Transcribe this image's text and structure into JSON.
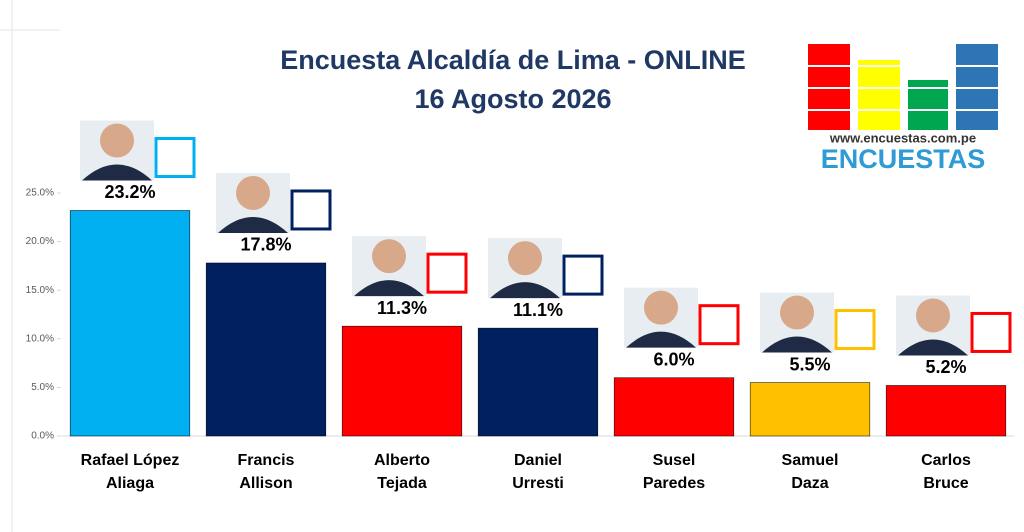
{
  "chart_data": {
    "type": "bar",
    "title": "Encuesta Alcaldía de Lima - ONLINE",
    "subtitle": "16 Agosto 2026",
    "categories": [
      [
        "Rafael López",
        "Aliaga"
      ],
      [
        "Francis",
        "Allison"
      ],
      [
        "Alberto",
        "Tejada"
      ],
      [
        "Daniel",
        "Urresti"
      ],
      [
        "Susel",
        "Paredes"
      ],
      [
        "Samuel",
        "Daza"
      ],
      [
        "Carlos",
        "Bruce"
      ]
    ],
    "values": [
      23.2,
      17.8,
      11.3,
      11.1,
      6.0,
      5.5,
      5.2
    ],
    "value_labels": [
      "23.2%",
      "17.8%",
      "11.3%",
      "11.1%",
      "6.0%",
      "5.5%",
      "5.2%"
    ],
    "colors": [
      "#00b0f0",
      "#002060",
      "#ff0000",
      "#002060",
      "#ff0000",
      "#ffc000",
      "#ff0000"
    ],
    "ylim": [
      0,
      25
    ],
    "yticks": [
      {
        "value": 0,
        "label": "0.0%"
      },
      {
        "value": 5,
        "label": "5.0%"
      },
      {
        "value": 10,
        "label": "10.0%"
      },
      {
        "value": 15,
        "label": "15.0%"
      },
      {
        "value": 20,
        "label": "20.0%"
      },
      {
        "value": 25,
        "label": "25.0%"
      }
    ],
    "logo": {
      "url": "www.encuestas.com.pe",
      "name": "ENCUESTAS"
    }
  }
}
